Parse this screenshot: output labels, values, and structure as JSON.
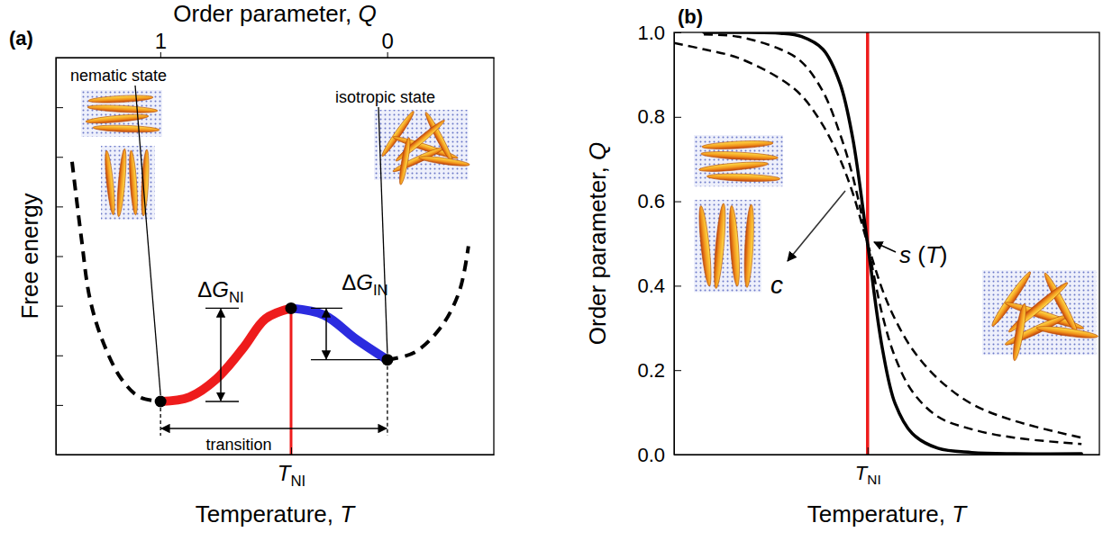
{
  "chart_data": [
    {
      "type": "line",
      "title": "(a)",
      "xlabel": "Temperature, T",
      "ylabel": "Free energy",
      "x2label": "Order parameter, Q",
      "xlim": [
        0,
        10
      ],
      "xticks": [
        {
          "value": 5.37,
          "label": "T",
          "subscript": "NI"
        }
      ],
      "x2lim": [
        1.46,
        -0.47
      ],
      "x2ticks": [
        1,
        0
      ],
      "ylim": [
        0,
        8
      ],
      "yticks": [
        1,
        2,
        3,
        4,
        5,
        6,
        7
      ],
      "tick_labels": "x",
      "series": [
        {
          "color": "#000000",
          "line_style": "dashed",
          "x": [
            0.37,
            0.58,
            0.78,
            1.09,
            1.5,
            1.91,
            2.39
          ],
          "values": [
            5.9,
            4.38,
            3.13,
            2.24,
            1.52,
            1.16,
            1.07
          ]
        },
        {
          "color": "#ee1c1c",
          "line_style": "solid",
          "x": [
            2.39,
            3.05,
            3.66,
            4.28,
            4.79,
            5.37
          ],
          "values": [
            1.07,
            1.16,
            1.52,
            2.15,
            2.74,
            2.95
          ]
        },
        {
          "color": "#2b2bdf",
          "line_style": "solid",
          "x": [
            5.37,
            6.13,
            6.85,
            7.57
          ],
          "values": [
            2.95,
            2.81,
            2.33,
            1.91
          ]
        },
        {
          "color": "#000000",
          "line_style": "dashed",
          "x": [
            7.57,
            8.19,
            8.81,
            9.22,
            9.42
          ],
          "values": [
            1.91,
            2.06,
            2.59,
            3.31,
            4.2
          ]
        },
        {
          "type": "scatter",
          "marker": "circle",
          "color": "#000000",
          "x": [
            2.39,
            5.37,
            7.57
          ],
          "values": [
            1.07,
            2.95,
            1.91
          ]
        }
      ],
      "annotations": [
        {
          "text": "nematic state"
        },
        {
          "text": "isotropic state"
        },
        {
          "text": "ΔG",
          "subscript": "NI"
        },
        {
          "text": "ΔG",
          "subscript": "IN"
        },
        {
          "text": "transition"
        }
      ]
    },
    {
      "type": "line",
      "title": "(b)",
      "xlabel": "Temperature, T",
      "ylabel": "Order parameter, Q",
      "xlim": [
        0,
        10
      ],
      "xticks": [
        {
          "value": 4.55,
          "label": "T",
          "subscript": "NI"
        }
      ],
      "ylim": [
        0,
        1.0
      ],
      "yticks": [
        {
          "value": 0,
          "label": "0.0"
        },
        0.2,
        0.4,
        0.6,
        0.8,
        {
          "value": 1,
          "label": "1.0"
        }
      ],
      "x": [
        0,
        0.7,
        1.5,
        2.5,
        3,
        3.5,
        3.9,
        4.2,
        4.55,
        4.9,
        5.2,
        5.6,
        6.2,
        7,
        8,
        9.58
      ],
      "series": [
        {
          "color": "#000000",
          "line_style": "solid",
          "values": [
            null,
            1.0,
            1.0,
            0.998,
            0.99,
            0.96,
            0.88,
            0.75,
            0.5,
            0.25,
            0.12,
            0.05,
            0.015,
            0.005,
            0.002,
            0.002
          ]
        },
        {
          "color": "#000000",
          "line_style": "dashed",
          "values": [
            null,
            0.995,
            0.99,
            0.96,
            0.93,
            0.86,
            0.76,
            0.66,
            0.5,
            0.33,
            0.23,
            0.15,
            0.09,
            0.06,
            0.04,
            0.025
          ]
        },
        {
          "color": "#000000",
          "line_style": "dashed",
          "values": [
            0.975,
            0.96,
            0.94,
            0.89,
            0.85,
            0.78,
            0.7,
            0.62,
            0.5,
            0.39,
            0.32,
            0.25,
            0.18,
            0.12,
            0.08,
            0.04
          ]
        }
      ],
      "annotations": [
        {
          "text": "c"
        },
        {
          "text": "s (T)"
        }
      ]
    }
  ]
}
